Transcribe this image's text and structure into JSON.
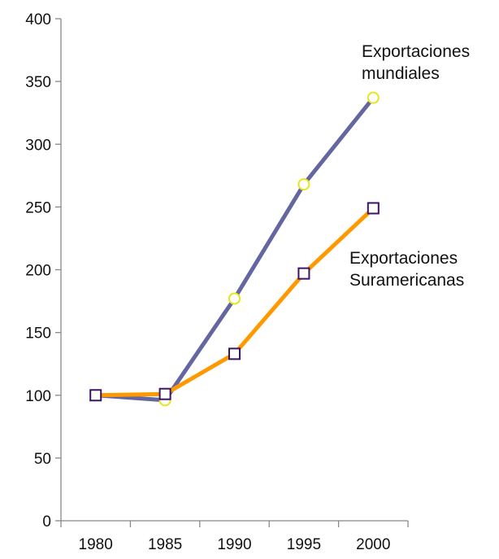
{
  "chart_data": {
    "type": "line",
    "title": "",
    "xlabel": "",
    "ylabel": "",
    "categories": [
      "1980",
      "1985",
      "1990",
      "1995",
      "2000"
    ],
    "ylim": [
      0,
      400
    ],
    "yticks": [
      0,
      50,
      100,
      150,
      200,
      250,
      300,
      350,
      400
    ],
    "grid": false,
    "legend": "none",
    "series": [
      {
        "name": "Exportaciones mundiales",
        "label_lines": [
          "Exportaciones",
          "mundiales"
        ],
        "values": [
          100,
          96,
          177,
          268,
          337
        ],
        "color": "#6366a0",
        "marker": "circle",
        "marker_color": "#e6e61e"
      },
      {
        "name": "Exportaciones Suramericanas",
        "label_lines": [
          "Exportaciones",
          "Suramericanas"
        ],
        "values": [
          100,
          101,
          133,
          197,
          249
        ],
        "color": "#ff9900",
        "marker": "square",
        "marker_color": "#3b1466"
      }
    ]
  }
}
